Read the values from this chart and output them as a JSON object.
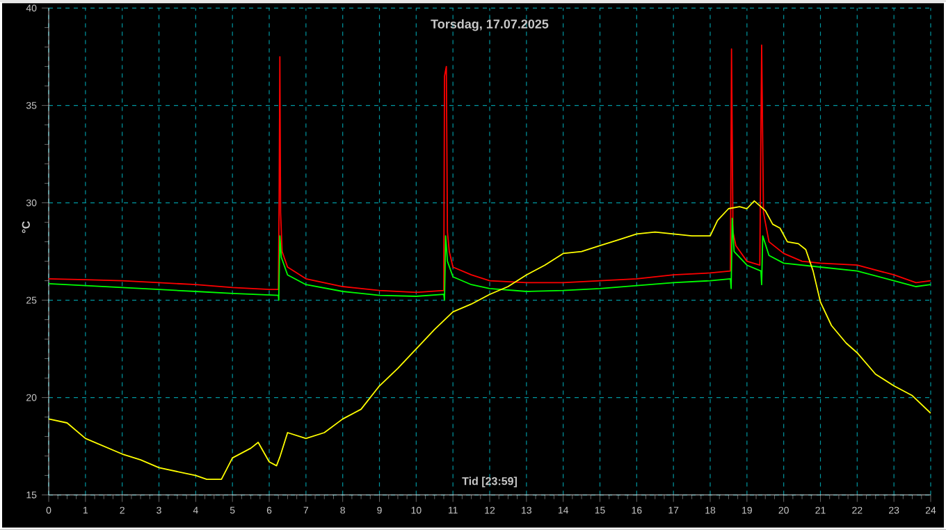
{
  "chart_data": {
    "type": "line",
    "title": "Torsdag, 17.07.2025",
    "xlabel": "Tid [23:59]",
    "ylabel": "°C",
    "xlim": [
      0,
      24
    ],
    "xticks": [
      0,
      1,
      2,
      3,
      4,
      5,
      6,
      7,
      8,
      9,
      10,
      11,
      12,
      13,
      14,
      15,
      16,
      17,
      18,
      19,
      20,
      21,
      22,
      23,
      24
    ],
    "ylim": [
      15,
      40
    ],
    "yticks": [
      15,
      20,
      25,
      30,
      35,
      40
    ],
    "grid": true,
    "marker": "none",
    "line_style": "solid",
    "series": [
      {
        "color": "#ff0000",
        "x": [
          0,
          1,
          2,
          3,
          4,
          5,
          6,
          6.25,
          6.27,
          6.29,
          6.31,
          6.35,
          6.5,
          7,
          8,
          9,
          10,
          10.75,
          10.77,
          10.82,
          10.85,
          10.9,
          11,
          11.5,
          12,
          13,
          14,
          15,
          16,
          17,
          18,
          18.55,
          18.58,
          18.62,
          18.7,
          19,
          19.35,
          19.4,
          19.45,
          19.6,
          20,
          20.5,
          21,
          22,
          23,
          23.6,
          24
        ],
        "values": [
          26.1,
          26.05,
          26.0,
          25.9,
          25.8,
          25.65,
          25.55,
          25.55,
          30.3,
          37.5,
          29.5,
          27.5,
          26.7,
          26.1,
          25.7,
          25.5,
          25.4,
          25.5,
          36.5,
          37.0,
          28.5,
          27.5,
          26.7,
          26.3,
          26.0,
          25.9,
          25.9,
          26.0,
          26.1,
          26.3,
          26.4,
          26.5,
          37.9,
          28.5,
          27.8,
          27.0,
          26.8,
          38.1,
          29.5,
          28.0,
          27.4,
          27.0,
          26.9,
          26.8,
          26.3,
          25.9,
          26.0
        ]
      },
      {
        "color": "#00ff00",
        "x": [
          0,
          1,
          2,
          3,
          4,
          5,
          6.25,
          6.26,
          6.29,
          6.33,
          6.5,
          7,
          8,
          9,
          10,
          10.75,
          10.77,
          10.8,
          10.85,
          11,
          11.5,
          12,
          13,
          14,
          15,
          16,
          17,
          18,
          18.55,
          18.57,
          18.6,
          18.65,
          19,
          19.38,
          19.4,
          19.43,
          19.6,
          20,
          21,
          22,
          23,
          23.6,
          24
        ],
        "values": [
          25.85,
          25.75,
          25.65,
          25.55,
          25.45,
          25.35,
          25.25,
          25.0,
          28.3,
          27.2,
          26.3,
          25.8,
          25.45,
          25.25,
          25.2,
          25.3,
          25.0,
          28.3,
          27.0,
          26.2,
          25.8,
          25.6,
          25.45,
          25.5,
          25.6,
          25.75,
          25.9,
          26.0,
          26.1,
          25.6,
          29.2,
          27.5,
          26.8,
          26.5,
          25.8,
          28.3,
          27.3,
          26.9,
          26.7,
          26.5,
          26.0,
          25.7,
          25.8
        ]
      },
      {
        "color": "#ffff00",
        "x": [
          0,
          0.5,
          1,
          1.5,
          2,
          2.5,
          3,
          3.5,
          4,
          4.3,
          4.7,
          5,
          5.5,
          5.7,
          6.0,
          6.2,
          6.3,
          6.5,
          7,
          7.5,
          8,
          8.5,
          9,
          9.5,
          10,
          10.5,
          11,
          11.5,
          12,
          12.5,
          13,
          13.5,
          14,
          14.5,
          15,
          15.5,
          16,
          16.5,
          17,
          17.5,
          18,
          18.2,
          18.5,
          18.8,
          19,
          19.2,
          19.5,
          19.7,
          19.9,
          20.1,
          20.4,
          20.6,
          20.8,
          21,
          21.3,
          21.7,
          22,
          22.5,
          23,
          23.5,
          24
        ],
        "values": [
          18.9,
          18.7,
          17.9,
          17.5,
          17.1,
          16.8,
          16.4,
          16.2,
          16.0,
          15.8,
          15.8,
          16.9,
          17.4,
          17.7,
          16.7,
          16.5,
          17.0,
          18.2,
          17.9,
          18.2,
          18.9,
          19.4,
          20.6,
          21.5,
          22.5,
          23.5,
          24.4,
          24.8,
          25.3,
          25.7,
          26.3,
          26.8,
          27.4,
          27.5,
          27.8,
          28.1,
          28.4,
          28.5,
          28.4,
          28.3,
          28.3,
          29.1,
          29.7,
          29.8,
          29.7,
          30.1,
          29.6,
          28.9,
          28.7,
          28.0,
          27.9,
          27.6,
          26.5,
          24.9,
          23.7,
          22.8,
          22.3,
          21.2,
          20.6,
          20.1,
          19.2
        ]
      }
    ]
  }
}
